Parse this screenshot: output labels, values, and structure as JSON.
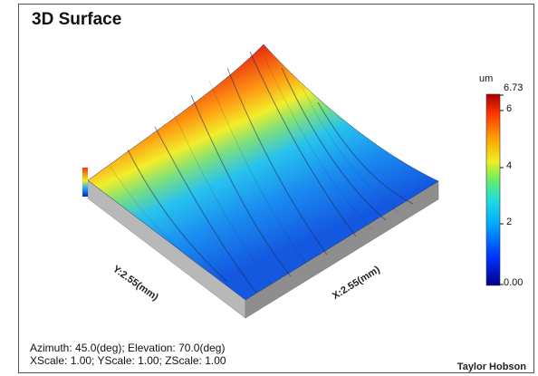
{
  "panel": {
    "title": "3D Surface",
    "x_axis_label": "X:2.55(mm)",
    "y_axis_label": "Y:2.55(mm)",
    "info_line_1": "Azimuth: 45.0(deg); Elevation: 70.0(deg)",
    "info_line_2": "XScale: 1.00; YScale: 1.00; ZScale: 1.00",
    "brand": "Taylor Hobson"
  },
  "colorbar": {
    "unit": "um",
    "max_label": "6.73",
    "ticks": [
      "6",
      "4",
      "2",
      "0.00"
    ],
    "tick_values": [
      6,
      4,
      2,
      0
    ],
    "min": 0,
    "max": 6.73,
    "colors": [
      "#00008a",
      "#0033ff",
      "#00aaff",
      "#22dddd",
      "#66ee66",
      "#eeee22",
      "#ff9900",
      "#ff3300",
      "#aa0000"
    ]
  },
  "colors": {
    "background": "#ffffff",
    "side_wall": "#b8b8b8",
    "side_wall_dark": "#8e8e8e",
    "score_lines": "#1a2a5a"
  }
}
